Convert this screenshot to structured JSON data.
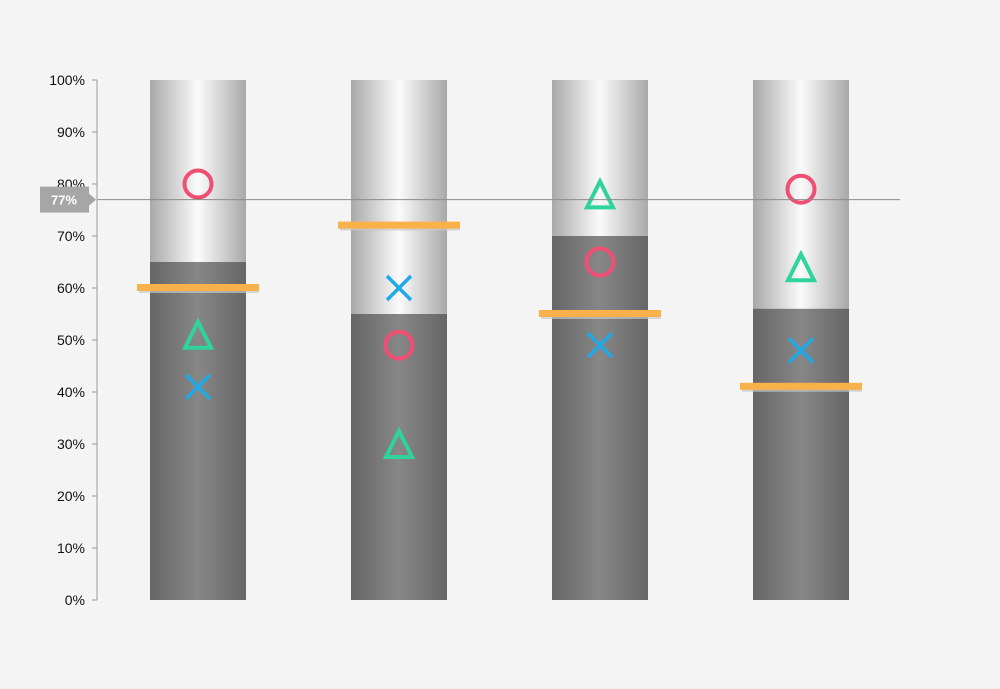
{
  "chart_data": {
    "type": "bar",
    "title": "",
    "xlabel": "",
    "ylabel": "",
    "ylim": [
      0,
      100
    ],
    "y_ticks": [
      "0%",
      "10%",
      "20%",
      "30%",
      "40%",
      "50%",
      "60%",
      "70%",
      "80%",
      "90%",
      "100%"
    ],
    "y_tick_values": [
      0,
      10,
      20,
      30,
      40,
      50,
      60,
      70,
      80,
      90,
      100
    ],
    "grid": false,
    "legend": "none",
    "categories": [
      "",
      "",
      "",
      ""
    ],
    "series": [
      {
        "marker": "bar-fill",
        "color": "#6e6e6e",
        "values": [
          65,
          55,
          70,
          56
        ]
      },
      {
        "marker": "target-line",
        "color": "#f9b24a",
        "values": [
          60,
          72,
          55,
          41
        ]
      },
      {
        "marker": "circle",
        "color": "#ef4f72",
        "values": [
          80,
          49,
          65,
          79
        ]
      },
      {
        "marker": "triangle",
        "color": "#2ed49b",
        "values": [
          51,
          30,
          78,
          64
        ]
      },
      {
        "marker": "cross",
        "color": "#1fa9e6",
        "values": [
          41,
          60,
          49,
          48
        ]
      }
    ],
    "crosshair": {
      "value": 77,
      "label": "77%"
    }
  }
}
